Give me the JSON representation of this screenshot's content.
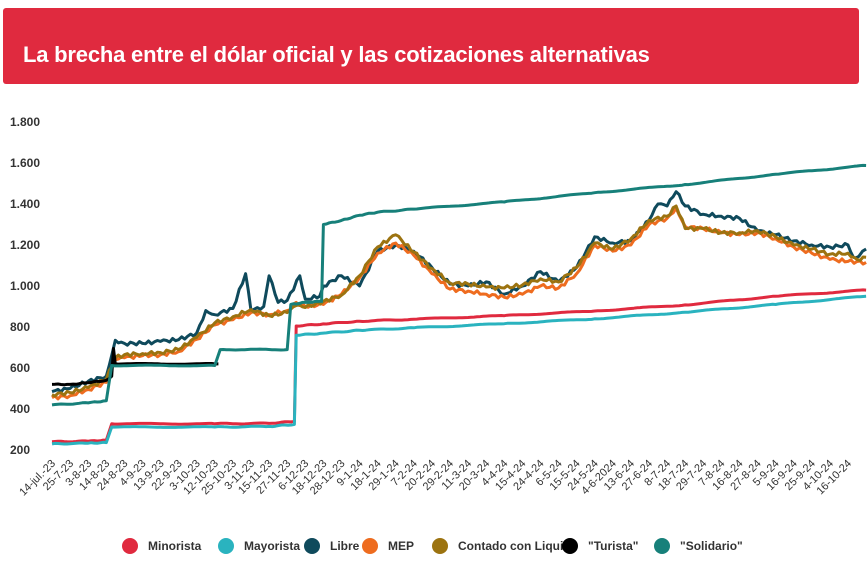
{
  "header": {
    "title": "La brecha entre el dólar oficial y las cotizaciones alternativas"
  },
  "colors": {
    "header_bg": "#e02a3f"
  },
  "chart_data": {
    "type": "line",
    "title": "La brecha entre el dólar oficial y las cotizaciones alternativas",
    "xlabel": "",
    "ylabel": "",
    "ylim": [
      200,
      1800
    ],
    "yticks": [
      200,
      400,
      600,
      800,
      1000,
      1200,
      1400,
      1600,
      1800
    ],
    "ytick_labels": [
      "200",
      "400",
      "600",
      "800",
      "1.000",
      "1.200",
      "1.400",
      "1.600",
      "1.800"
    ],
    "grid": false,
    "legend_position": "bottom",
    "x_tick_labels": [
      "14-jul.-23",
      "25-7-23",
      "3-8-23",
      "14-8-23",
      "24-8-23",
      "4-9-23",
      "13-9-23",
      "22-9-23",
      "3-10-23",
      "12-10-23",
      "25-10-23",
      "3-11-23",
      "15-11-23",
      "27-11-23",
      "6-12-23",
      "18-12-23",
      "28-12-23",
      "9-1-24",
      "18-1-24",
      "29-1-24",
      "7-2-24",
      "20-2-24",
      "29-2-24",
      "11-3-24",
      "20-3-24",
      "4-4-24",
      "15-4-24",
      "24-4-24",
      "6-5-24",
      "15-5-24",
      "24-5-24",
      "4-6-2024",
      "13-6-24",
      "27-6-24",
      "8-7-24",
      "18-7-24",
      "29-7-24",
      "7-8-24",
      "16-8-24",
      "27-8-24",
      "5-9-24",
      "16-9-24",
      "25-9-24",
      "4-10-24",
      "16-10-24"
    ],
    "series": [
      {
        "name": "Minorista",
        "color": "#e02a3f",
        "points": [
          [
            0,
            240
          ],
          [
            2,
            243
          ],
          [
            3,
            248
          ],
          [
            3.3,
            328
          ],
          [
            9,
            328
          ],
          [
            12,
            330
          ],
          [
            13.4,
            340
          ],
          [
            13.5,
            805
          ],
          [
            15,
            815
          ],
          [
            17,
            828
          ],
          [
            20,
            838
          ],
          [
            25,
            855
          ],
          [
            30,
            878
          ],
          [
            35,
            908
          ],
          [
            40,
            950
          ],
          [
            45,
            980
          ]
        ]
      },
      {
        "name": "Mayorista",
        "color": "#2ab3bf",
        "points": [
          [
            0,
            230
          ],
          [
            2,
            233
          ],
          [
            3,
            236
          ],
          [
            3.3,
            312
          ],
          [
            9,
            312
          ],
          [
            12,
            315
          ],
          [
            13.4,
            325
          ],
          [
            13.5,
            760
          ],
          [
            15,
            770
          ],
          [
            17,
            784
          ],
          [
            20,
            796
          ],
          [
            25,
            816
          ],
          [
            30,
            840
          ],
          [
            35,
            872
          ],
          [
            40,
            910
          ],
          [
            45,
            950
          ]
        ]
      },
      {
        "name": "Libre",
        "color": "#0f4a5c",
        "points": [
          [
            0,
            485
          ],
          [
            1,
            500
          ],
          [
            2,
            535
          ],
          [
            3,
            560
          ],
          [
            3.5,
            735
          ],
          [
            4,
            720
          ],
          [
            5,
            720
          ],
          [
            6,
            730
          ],
          [
            7,
            738
          ],
          [
            8,
            770
          ],
          [
            8.5,
            880
          ],
          [
            9,
            860
          ],
          [
            10,
            890
          ],
          [
            10.7,
            1060
          ],
          [
            11,
            880
          ],
          [
            11.7,
            900
          ],
          [
            12,
            1050
          ],
          [
            12.5,
            920
          ],
          [
            13,
            930
          ],
          [
            13.7,
            1050
          ],
          [
            14,
            935
          ],
          [
            14.8,
            950
          ],
          [
            15,
            1000
          ],
          [
            16,
            1050
          ],
          [
            17,
            1000
          ],
          [
            18,
            1170
          ],
          [
            19,
            1200
          ],
          [
            20,
            1170
          ],
          [
            21,
            1090
          ],
          [
            22,
            1010
          ],
          [
            23,
            1000
          ],
          [
            24,
            1020
          ],
          [
            25,
            960
          ],
          [
            26,
            1000
          ],
          [
            27,
            1070
          ],
          [
            28,
            1020
          ],
          [
            29,
            1090
          ],
          [
            30,
            1240
          ],
          [
            31,
            1210
          ],
          [
            32,
            1220
          ],
          [
            33,
            1320
          ],
          [
            33.5,
            1400
          ],
          [
            34,
            1390
          ],
          [
            34.5,
            1460
          ],
          [
            35,
            1390
          ],
          [
            36,
            1350
          ],
          [
            37,
            1340
          ],
          [
            38,
            1330
          ],
          [
            39,
            1270
          ],
          [
            40,
            1250
          ],
          [
            41,
            1220
          ],
          [
            42,
            1200
          ],
          [
            43,
            1190
          ],
          [
            44,
            1200
          ],
          [
            44.3,
            1140
          ],
          [
            44.6,
            1145
          ],
          [
            45,
            1180
          ]
        ]
      },
      {
        "name": "MEP",
        "color": "#ee6c1f",
        "points": [
          [
            0,
            455
          ],
          [
            1,
            465
          ],
          [
            2,
            495
          ],
          [
            3,
            530
          ],
          [
            3.5,
            640
          ],
          [
            4,
            650
          ],
          [
            5,
            660
          ],
          [
            6,
            665
          ],
          [
            7,
            680
          ],
          [
            8,
            740
          ],
          [
            9,
            810
          ],
          [
            10,
            835
          ],
          [
            11,
            870
          ],
          [
            12,
            860
          ],
          [
            13,
            880
          ],
          [
            13.5,
            920
          ],
          [
            14,
            900
          ],
          [
            15,
            910
          ],
          [
            16,
            960
          ],
          [
            17,
            1040
          ],
          [
            18,
            1160
          ],
          [
            19,
            1210
          ],
          [
            20,
            1150
          ],
          [
            21,
            1060
          ],
          [
            22,
            985
          ],
          [
            23,
            975
          ],
          [
            24,
            960
          ],
          [
            25,
            945
          ],
          [
            26,
            960
          ],
          [
            27,
            1000
          ],
          [
            28,
            990
          ],
          [
            29,
            1060
          ],
          [
            30,
            1200
          ],
          [
            31,
            1170
          ],
          [
            32,
            1200
          ],
          [
            33,
            1300
          ],
          [
            34,
            1330
          ],
          [
            34.5,
            1380
          ],
          [
            35,
            1290
          ],
          [
            36,
            1280
          ],
          [
            37,
            1260
          ],
          [
            38,
            1250
          ],
          [
            39,
            1260
          ],
          [
            40,
            1230
          ],
          [
            41,
            1190
          ],
          [
            42,
            1160
          ],
          [
            43,
            1130
          ],
          [
            44,
            1120
          ],
          [
            45,
            1115
          ]
        ]
      },
      {
        "name": "Contado con Liqui",
        "color": "#9c7310",
        "points": [
          [
            0,
            470
          ],
          [
            1,
            480
          ],
          [
            2,
            505
          ],
          [
            3,
            545
          ],
          [
            3.5,
            650
          ],
          [
            4,
            665
          ],
          [
            5,
            670
          ],
          [
            6,
            675
          ],
          [
            7,
            690
          ],
          [
            8,
            750
          ],
          [
            9,
            820
          ],
          [
            10,
            850
          ],
          [
            11,
            885
          ],
          [
            12,
            855
          ],
          [
            13,
            870
          ],
          [
            13.5,
            905
          ],
          [
            14,
            895
          ],
          [
            15,
            925
          ],
          [
            16,
            955
          ],
          [
            17,
            1050
          ],
          [
            18,
            1190
          ],
          [
            19,
            1250
          ],
          [
            20,
            1165
          ],
          [
            21,
            1085
          ],
          [
            22,
            1015
          ],
          [
            23,
            1010
          ],
          [
            24,
            995
          ],
          [
            25,
            990
          ],
          [
            26,
            1005
          ],
          [
            27,
            1035
          ],
          [
            28,
            1020
          ],
          [
            29,
            1090
          ],
          [
            30,
            1210
          ],
          [
            31,
            1180
          ],
          [
            32,
            1230
          ],
          [
            33,
            1320
          ],
          [
            34,
            1340
          ],
          [
            34.5,
            1390
          ],
          [
            35,
            1280
          ],
          [
            36,
            1280
          ],
          [
            37,
            1260
          ],
          [
            38,
            1260
          ],
          [
            39,
            1270
          ],
          [
            40,
            1240
          ],
          [
            41,
            1200
          ],
          [
            42,
            1180
          ],
          [
            43,
            1155
          ],
          [
            44,
            1160
          ],
          [
            44.5,
            1130
          ],
          [
            45,
            1140
          ]
        ]
      },
      {
        "name": "\"Turista\"",
        "color": "#000000",
        "points": [
          [
            0,
            520
          ],
          [
            1,
            520
          ],
          [
            2,
            528
          ],
          [
            3,
            540
          ],
          [
            3.3,
            560
          ],
          [
            3.4,
            695
          ],
          [
            3.5,
            620
          ],
          [
            9,
            620
          ],
          [
            9.2,
            620
          ]
        ]
      },
      {
        "name": "\"Solidario\"",
        "color": "#17807a",
        "points": [
          [
            0,
            420
          ],
          [
            2,
            430
          ],
          [
            3,
            440
          ],
          [
            3.3,
            612
          ],
          [
            9,
            612
          ],
          [
            9.3,
            690
          ],
          [
            13,
            690
          ],
          [
            13.2,
            910
          ],
          [
            14,
            920
          ],
          [
            14.9,
            925
          ],
          [
            15,
            1300
          ],
          [
            16,
            1320
          ],
          [
            17,
            1345
          ],
          [
            18,
            1360
          ],
          [
            20,
            1375
          ],
          [
            25,
            1410
          ],
          [
            30,
            1455
          ],
          [
            35,
            1495
          ],
          [
            40,
            1545
          ],
          [
            45,
            1588
          ]
        ]
      }
    ]
  }
}
